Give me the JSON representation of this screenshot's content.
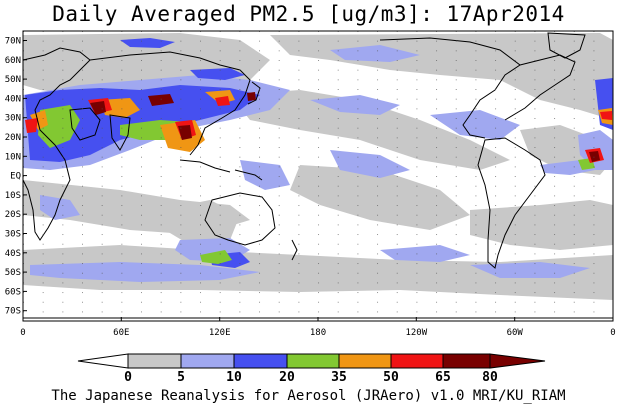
{
  "title": "Daily Averaged PM2.5 [ug/m3]: 17Apr2014",
  "credit": "The Japanese Reanalysis for Aerosol (JRAero) v1.0 MRI/KU_RIAM",
  "lat_ticks": [
    "70N",
    "60N",
    "50N",
    "40N",
    "30N",
    "20N",
    "10N",
    "EQ",
    "10S",
    "20S",
    "30S",
    "40S",
    "50S",
    "60S",
    "70S"
  ],
  "lon_ticks": [
    "0",
    "60E",
    "120E",
    "180",
    "120W",
    "60W",
    "0"
  ],
  "colorbar": {
    "labels": [
      "0",
      "5",
      "10",
      "20",
      "35",
      "50",
      "65",
      "80"
    ],
    "colors": [
      "#ffffff",
      "#c8c8c8",
      "#a0a8f0",
      "#4650f0",
      "#82c832",
      "#f09614",
      "#f01414",
      "#780000"
    ]
  }
}
